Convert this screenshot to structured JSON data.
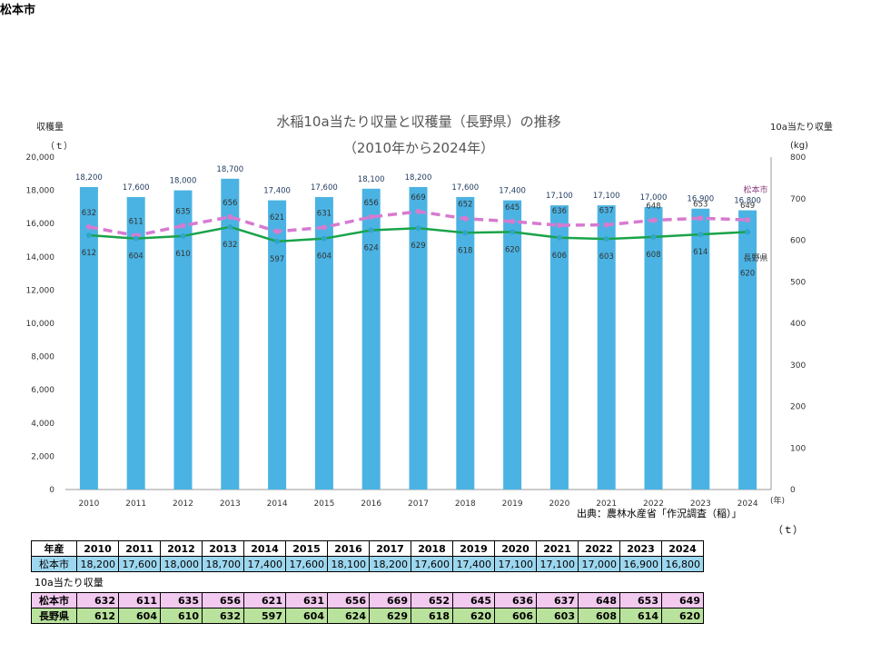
{
  "page": {
    "city": "松本市"
  },
  "chart_data": {
    "type": "bar+line",
    "title": "水稲10a当たり収量と収穫量（長野県）の推移",
    "subtitle": "（2010年から2024年）",
    "left_axis_label": "収穫量",
    "left_axis_unit": "（ｔ）",
    "right_axis_label": "10a当たり収量",
    "right_axis_unit": "(kg)",
    "x_unit": "(年)",
    "categories": [
      "2010",
      "2011",
      "2012",
      "2013",
      "2014",
      "2015",
      "2016",
      "2017",
      "2018",
      "2019",
      "2020",
      "2021",
      "2022",
      "2023",
      "2024"
    ],
    "ylim_left": [
      0,
      20000
    ],
    "ylim_right": [
      0,
      800
    ],
    "left_ticks": [
      0,
      2000,
      4000,
      6000,
      8000,
      10000,
      12000,
      14000,
      16000,
      18000,
      20000
    ],
    "left_tick_labels": [
      "0",
      "2,000",
      "4,000",
      "6,000",
      "8,000",
      "10,000",
      "12,000",
      "14,000",
      "16,000",
      "18,000",
      "20,000"
    ],
    "right_ticks": [
      0,
      100,
      200,
      300,
      400,
      500,
      600,
      700,
      800
    ],
    "series": [
      {
        "name": "松本市 収穫量",
        "axis": "left",
        "kind": "bar",
        "color": "#4bb3e3",
        "values": [
          18200,
          17600,
          18000,
          18700,
          17400,
          17600,
          18100,
          18200,
          17600,
          17400,
          17100,
          17100,
          17000,
          16900,
          16800
        ],
        "labels": [
          "18,200",
          "17,600",
          "18,000",
          "18,700",
          "17,400",
          "17,600",
          "18,100",
          "18,200",
          "17,600",
          "17,400",
          "17,100",
          "17,100",
          "17,000",
          "16,900",
          "16,800"
        ]
      },
      {
        "name": "松本市",
        "axis": "right",
        "kind": "line-dashed",
        "color": "#d77ad0",
        "values": [
          632,
          611,
          635,
          656,
          621,
          631,
          656,
          669,
          652,
          645,
          636,
          637,
          648,
          653,
          649
        ]
      },
      {
        "name": "長野県",
        "axis": "right",
        "kind": "line",
        "color": "#1aa34a",
        "values": [
          612,
          604,
          610,
          632,
          597,
          604,
          624,
          629,
          618,
          620,
          606,
          603,
          608,
          614,
          620
        ]
      }
    ]
  },
  "source": "出典：農林水産省「作況調査（稲）」",
  "table_unit": "（ｔ）",
  "yield_table_title": "10a当たり収量",
  "table": {
    "year_header": "年産",
    "city_label": "松本市",
    "pref_label": "長野県",
    "years": [
      "2010",
      "2011",
      "2012",
      "2013",
      "2014",
      "2015",
      "2016",
      "2017",
      "2018",
      "2019",
      "2020",
      "2021",
      "2022",
      "2023",
      "2024"
    ],
    "harvest": [
      "18,200",
      "17,600",
      "18,000",
      "18,700",
      "17,400",
      "17,600",
      "18,100",
      "18,200",
      "17,600",
      "17,400",
      "17,100",
      "17,100",
      "17,000",
      "16,900",
      "16,800"
    ],
    "city_yield": [
      "632",
      "611",
      "635",
      "656",
      "621",
      "631",
      "656",
      "669",
      "652",
      "645",
      "636",
      "637",
      "648",
      "653",
      "649"
    ],
    "pref_yield": [
      "612",
      "604",
      "610",
      "632",
      "597",
      "604",
      "624",
      "629",
      "618",
      "620",
      "606",
      "603",
      "608",
      "614",
      "620"
    ]
  }
}
